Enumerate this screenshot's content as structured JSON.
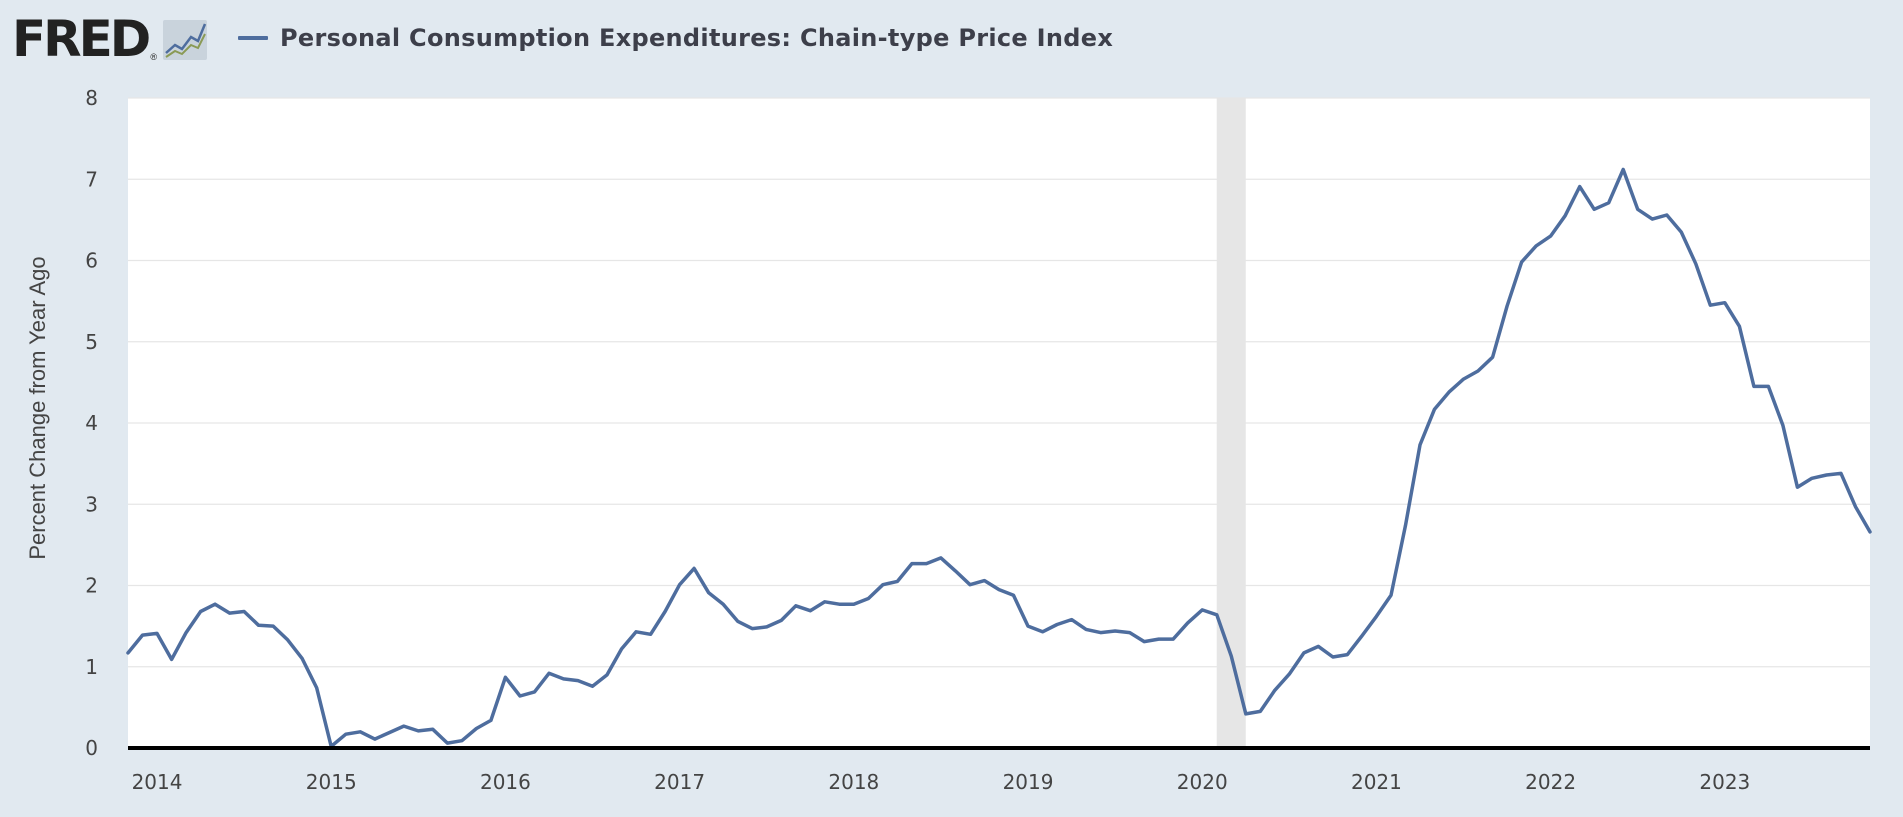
{
  "header": {
    "logo_text": "FRED",
    "logo_reg": "®"
  },
  "colors": {
    "background": "#e1e9f0",
    "plot_background": "#ffffff",
    "series_line": "#4e6d9e",
    "gridline": "#e6e6e6",
    "recession_band": "#e6e6e6",
    "zero_axis": "#000000"
  },
  "chart_data": {
    "type": "line",
    "title": "Personal Consumption Expenditures: Chain-type Price Index",
    "xlabel": "",
    "ylabel": "Percent Change from Year Ago",
    "xlim": [
      "2013-11-01",
      "2023-11-01"
    ],
    "ylim": [
      0,
      8
    ],
    "y_ticks": [
      0,
      1,
      2,
      3,
      4,
      5,
      6,
      7,
      8
    ],
    "x_ticks": [
      "2014",
      "2015",
      "2016",
      "2017",
      "2018",
      "2019",
      "2020",
      "2021",
      "2022",
      "2023"
    ],
    "grid": true,
    "legend_position": "top-left",
    "recession_shading": [
      {
        "start": "2020-02-01",
        "end": "2020-04-01"
      }
    ],
    "series": [
      {
        "name": "Personal Consumption Expenditures: Chain-type Price Index",
        "dates": [
          "2013-11",
          "2013-12",
          "2014-01",
          "2014-02",
          "2014-03",
          "2014-04",
          "2014-05",
          "2014-06",
          "2014-07",
          "2014-08",
          "2014-09",
          "2014-10",
          "2014-11",
          "2014-12",
          "2015-01",
          "2015-02",
          "2015-03",
          "2015-04",
          "2015-05",
          "2015-06",
          "2015-07",
          "2015-08",
          "2015-09",
          "2015-10",
          "2015-11",
          "2015-12",
          "2016-01",
          "2016-02",
          "2016-03",
          "2016-04",
          "2016-05",
          "2016-06",
          "2016-07",
          "2016-08",
          "2016-09",
          "2016-10",
          "2016-11",
          "2016-12",
          "2017-01",
          "2017-02",
          "2017-03",
          "2017-04",
          "2017-05",
          "2017-06",
          "2017-07",
          "2017-08",
          "2017-09",
          "2017-10",
          "2017-11",
          "2017-12",
          "2018-01",
          "2018-02",
          "2018-03",
          "2018-04",
          "2018-05",
          "2018-06",
          "2018-07",
          "2018-08",
          "2018-09",
          "2018-10",
          "2018-11",
          "2018-12",
          "2019-01",
          "2019-02",
          "2019-03",
          "2019-04",
          "2019-05",
          "2019-06",
          "2019-07",
          "2019-08",
          "2019-09",
          "2019-10",
          "2019-11",
          "2019-12",
          "2020-01",
          "2020-02",
          "2020-03",
          "2020-04",
          "2020-05",
          "2020-06",
          "2020-07",
          "2020-08",
          "2020-09",
          "2020-10",
          "2020-11",
          "2020-12",
          "2021-01",
          "2021-02",
          "2021-03",
          "2021-04",
          "2021-05",
          "2021-06",
          "2021-07",
          "2021-08",
          "2021-09",
          "2021-10",
          "2021-11",
          "2021-12",
          "2022-01",
          "2022-02",
          "2022-03",
          "2022-04",
          "2022-05",
          "2022-06",
          "2022-07",
          "2022-08",
          "2022-09",
          "2022-10",
          "2022-11",
          "2022-12",
          "2023-01",
          "2023-02",
          "2023-03",
          "2023-04",
          "2023-05",
          "2023-06",
          "2023-07",
          "2023-08",
          "2023-09",
          "2023-10",
          "2023-11"
        ],
        "values": [
          1.17,
          1.39,
          1.41,
          1.09,
          1.42,
          1.68,
          1.77,
          1.66,
          1.68,
          1.51,
          1.5,
          1.33,
          1.1,
          0.74,
          0.02,
          0.17,
          0.2,
          0.11,
          0.19,
          0.27,
          0.21,
          0.23,
          0.06,
          0.09,
          0.24,
          0.34,
          0.87,
          0.64,
          0.69,
          0.92,
          0.85,
          0.83,
          0.76,
          0.9,
          1.22,
          1.43,
          1.4,
          1.68,
          2.01,
          2.21,
          1.91,
          1.77,
          1.56,
          1.47,
          1.49,
          1.57,
          1.75,
          1.69,
          1.8,
          1.77,
          1.77,
          1.84,
          2.01,
          2.05,
          2.27,
          2.27,
          2.34,
          2.18,
          2.01,
          2.06,
          1.95,
          1.88,
          1.5,
          1.43,
          1.52,
          1.58,
          1.46,
          1.42,
          1.44,
          1.42,
          1.31,
          1.34,
          1.34,
          1.54,
          1.7,
          1.64,
          1.13,
          0.42,
          0.45,
          0.71,
          0.91,
          1.17,
          1.25,
          1.12,
          1.15,
          1.38,
          1.62,
          1.88,
          2.74,
          3.73,
          4.17,
          4.38,
          4.54,
          4.64,
          4.81,
          5.44,
          5.98,
          6.18,
          6.3,
          6.55,
          6.91,
          6.63,
          6.71,
          7.12,
          6.63,
          6.51,
          6.56,
          6.35,
          5.96,
          5.45,
          5.48,
          5.19,
          4.45,
          4.45,
          3.97,
          3.21,
          3.32,
          3.36,
          3.38,
          2.97,
          2.66
        ]
      }
    ]
  }
}
